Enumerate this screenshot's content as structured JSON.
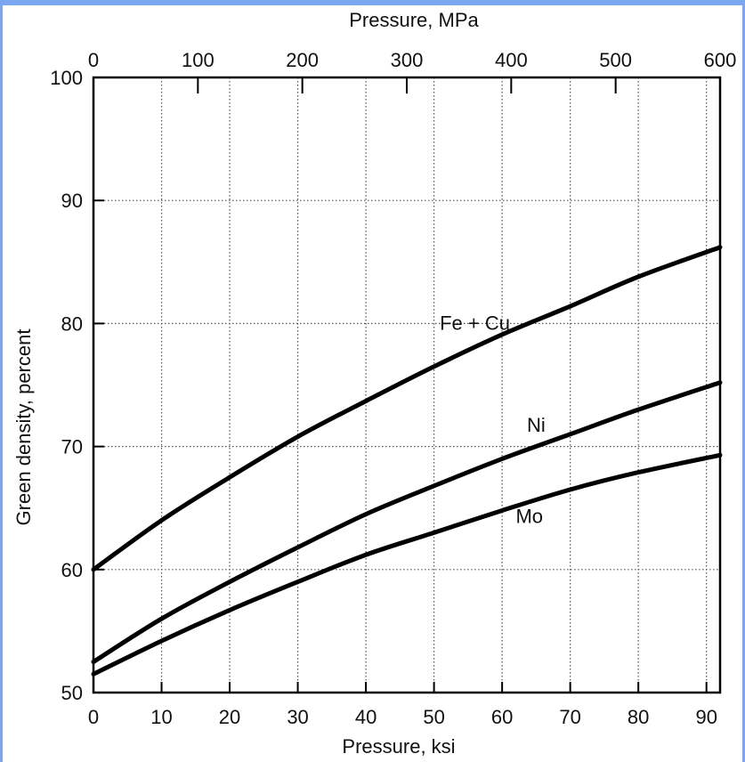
{
  "chart_data": {
    "type": "line",
    "xlabel": "Pressure, ksi",
    "x2label": "Pressure, MPa",
    "ylabel": "Green density, percent",
    "xlim": [
      0,
      92
    ],
    "ylim": [
      50,
      100
    ],
    "x2lim": [
      0,
      600
    ],
    "xticks": [
      0,
      10,
      20,
      30,
      40,
      50,
      60,
      70,
      80,
      90
    ],
    "x2ticks": [
      0,
      100,
      200,
      300,
      400,
      500,
      600
    ],
    "yticks": [
      50,
      60,
      70,
      80,
      90,
      100
    ],
    "grid": true,
    "series": [
      {
        "name": "Fe + Cu",
        "x": [
          0,
          10,
          20,
          30,
          40,
          50,
          60,
          70,
          80,
          92
        ],
        "y": [
          60.0,
          64.0,
          67.5,
          70.8,
          73.7,
          76.5,
          79.1,
          81.4,
          83.8,
          86.2
        ]
      },
      {
        "name": "Ni",
        "x": [
          0,
          10,
          20,
          30,
          40,
          50,
          60,
          70,
          80,
          92
        ],
        "y": [
          52.5,
          56.0,
          59.0,
          61.8,
          64.5,
          66.8,
          69.0,
          71.0,
          73.0,
          75.2
        ]
      },
      {
        "name": "Mo",
        "x": [
          0,
          10,
          20,
          30,
          40,
          50,
          60,
          70,
          80,
          92
        ],
        "y": [
          51.5,
          54.2,
          56.7,
          59.0,
          61.2,
          63.0,
          64.8,
          66.5,
          67.9,
          69.3
        ]
      }
    ]
  }
}
